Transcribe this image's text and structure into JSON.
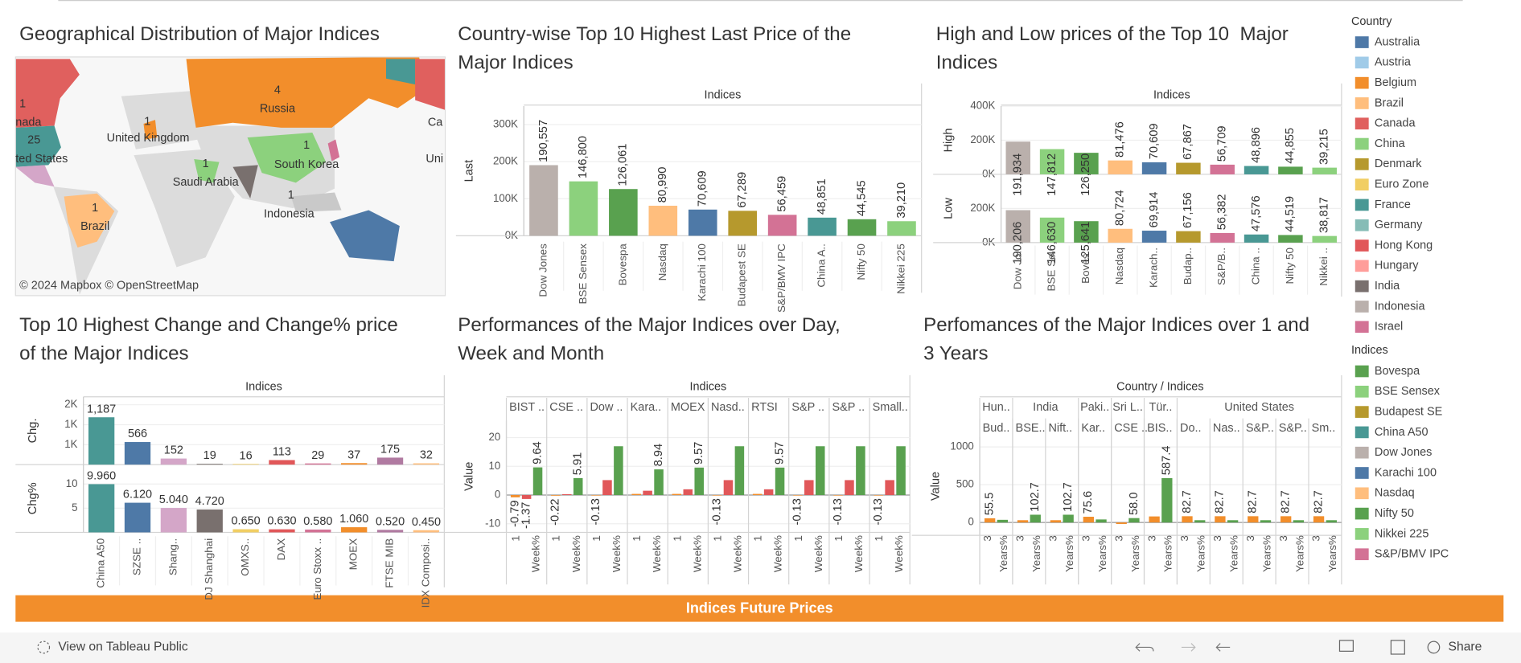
{
  "map": {
    "title": "Geographical Distribution of Major Indices",
    "labels": [
      1,
      "nada",
      25,
      "ted States",
      "United Kingdom",
      1,
      4,
      "Russia",
      1,
      "Saudi Arabia",
      1,
      "South Korea",
      1,
      "Brazil",
      1,
      "Indonesia",
      "Ca",
      "Uni"
    ],
    "attribution": "© 2024 Mapbox  © OpenStreetMap"
  },
  "chart_data": [
    {
      "type": "bar",
      "title": "Country-wise Top 10 Highest Last Price of the Major Indices",
      "header": "Indices",
      "categories": [
        "Dow Jones",
        "BSE Sensex",
        "Bovespa",
        "Nasdaq",
        "Karachi 100",
        "Budapest SE",
        "S&P/BMV IPC",
        "China A..",
        "Nifty 50",
        "Nikkei 225"
      ],
      "colors": [
        "#bab0ac",
        "#8cd17d",
        "#59a14f",
        "#ffbe7d",
        "#4e79a7",
        "#b6992d",
        "#d37295",
        "#499894",
        "#59a14f",
        "#8cd17d"
      ],
      "panels": [
        {
          "y_label": "Last",
          "values": [
            190557,
            146800,
            126061,
            80990,
            70609,
            67289,
            56459,
            48851,
            44545,
            39210
          ],
          "value_labels": [
            "190,557",
            "146,800",
            "126,061",
            "80,990",
            "70,609",
            "67,289",
            "56,459",
            "48,851",
            "44,545",
            "39,210"
          ],
          "ylim": [
            0,
            350000
          ],
          "yticks": [
            {
              "value": 0,
              "label": "0K"
            },
            {
              "value": 100000,
              "label": "100K"
            },
            {
              "value": 200000,
              "label": "200K"
            },
            {
              "value": 300000,
              "label": "300K"
            }
          ]
        }
      ]
    },
    {
      "type": "bar",
      "title": "High and Low prices of the Top 10  Major Indices",
      "header": "Indices",
      "categories": [
        "Dow Jo..",
        "BSE Se..",
        "Boves..",
        "Nasdaq",
        "Karach..",
        "Budap..",
        "S&P/B..",
        "China ..",
        "Nifty 50",
        "Nikkei .."
      ],
      "colors": [
        "#bab0ac",
        "#8cd17d",
        "#59a14f",
        "#ffbe7d",
        "#4e79a7",
        "#b6992d",
        "#d37295",
        "#499894",
        "#59a14f",
        "#8cd17d"
      ],
      "panels": [
        {
          "y_label": "High",
          "values": [
            191934,
            147812,
            126250,
            81476,
            70609,
            67867,
            56709,
            48896,
            44855,
            39215
          ],
          "value_labels": [
            "191,934",
            "147,812",
            "126,250",
            "81,476",
            "70,609",
            "67,867",
            "56,709",
            "48,896",
            "44,855",
            "39,215"
          ],
          "ylim": [
            0,
            400000
          ],
          "yticks": [
            {
              "value": 0,
              "label": "0K"
            },
            {
              "value": 200000,
              "label": "200K"
            },
            {
              "value": 400000,
              "label": "400K"
            }
          ]
        },
        {
          "y_label": "Low",
          "values": [
            190206,
            146630,
            125641,
            80724,
            69914,
            67156,
            56382,
            47576,
            44519,
            38817
          ],
          "value_labels": [
            "190,206",
            "146,630",
            "125,641",
            "80,724",
            "69,914",
            "67,156",
            "56,382",
            "47,576",
            "44,519",
            "38,817"
          ],
          "ylim": [
            0,
            400000
          ],
          "yticks": [
            {
              "value": 0,
              "label": "0K"
            },
            {
              "value": 200000,
              "label": "200K"
            }
          ]
        }
      ]
    },
    {
      "type": "bar",
      "title": "Top 10 Highest Change and Change% price of the Major Indices",
      "header": "Indices",
      "categories": [
        "China A50",
        "SZSE ..",
        "Shang..",
        "DJ Shanghai",
        "OMXS..",
        "DAX",
        "Euro Stoxx ..",
        "MOEX",
        "FTSE MIB",
        "IDX Composi.."
      ],
      "colors": [
        "#499894",
        "#4e79a7",
        "#d4a6c8",
        "#79706e",
        "#f1ce63",
        "#e15759",
        "#d37295",
        "#f28e2b",
        "#b07aa1",
        "#ffbe7d"
      ],
      "panels": [
        {
          "y_label": "Chg.",
          "values": [
            1187,
            566,
            152,
            19,
            16,
            113,
            29,
            37,
            175,
            32
          ],
          "value_labels": [
            "1,187",
            "566",
            "152",
            "19",
            "16",
            "113",
            "29",
            "37",
            "175",
            "32"
          ],
          "ylim": [
            0,
            1700
          ],
          "yticks": [
            {
              "value": 500,
              "label": "1K"
            },
            {
              "value": 1000,
              "label": "1K"
            },
            {
              "value": 1500,
              "label": "2K"
            }
          ]
        },
        {
          "y_label": "Chg%",
          "values": [
            9.96,
            6.12,
            5.04,
            4.72,
            0.65,
            0.63,
            0.58,
            1.06,
            0.52,
            0.45
          ],
          "value_labels": [
            "9.960",
            "6.120",
            "5.040",
            "4.720",
            "0.650",
            "0.630",
            "0.580",
            "1.060",
            "0.520",
            "0.450"
          ],
          "ylim": [
            0,
            14
          ],
          "yticks": [
            5,
            10
          ]
        }
      ]
    },
    {
      "type": "grouped-bar",
      "title": "Performances of the Major Indices over Day, Week and Month",
      "header": "Indices",
      "columns": [
        "BIST ..",
        "CSE ..",
        "Dow ..",
        "Kara..",
        "MOEX",
        "Nasd..",
        "RTSI",
        "S&P ..",
        "S&P ..",
        "Small.."
      ],
      "sub_labels": [
        "1",
        "Week%"
      ],
      "y_label": "Value",
      "ylim": [
        -13,
        26
      ],
      "yticks": [
        -10,
        0,
        10,
        20
      ],
      "series": [
        {
          "color": "#f28e2b",
          "values": [
            -0.79,
            -0.22,
            -0.13,
            0.4,
            0.4,
            -0.13,
            0.4,
            -0.13,
            -0.13,
            -0.13
          ],
          "value_labels": [
            "-0.79",
            "-0.22",
            "-0.13",
            null,
            null,
            "-0.13",
            null,
            "-0.13",
            "-0.13",
            "-0.13"
          ]
        },
        {
          "color": "#e15759",
          "values": [
            -1.37,
            0.3,
            5.2,
            1.5,
            2.0,
            5.2,
            2.0,
            5.2,
            5.2,
            5.2
          ],
          "value_labels": [
            "-1.37",
            null,
            null,
            null,
            null,
            null,
            null,
            null,
            null,
            null
          ]
        },
        {
          "color": "#59a14f",
          "values": [
            9.64,
            5.91,
            17,
            8.94,
            9.57,
            17,
            9.57,
            17,
            17,
            17
          ],
          "value_labels": [
            "9.64",
            "5.91",
            null,
            "8.94",
            "9.57",
            null,
            "9.57",
            null,
            null,
            null
          ]
        }
      ]
    },
    {
      "type": "grouped-bar",
      "title": "Perfomances of the Major Indices over 1 and 3 Years",
      "header": "Country / Indices",
      "groups": [
        "Hun..",
        "India",
        null,
        "Paki..",
        "Sri L..",
        "Tür..",
        "United States",
        null,
        null,
        null,
        null
      ],
      "columns": [
        "Bud..",
        "BSE..",
        "Nift..",
        "Kar..",
        "CSE ..",
        "BIS..",
        "Do..",
        "Nas..",
        "S&P..",
        "S&P..",
        "Sm.."
      ],
      "sub_labels": [
        "3",
        "Years%"
      ],
      "y_label": "Value",
      "ylim": [
        -170,
        1130
      ],
      "yticks": [
        0,
        500,
        1000
      ],
      "series": [
        {
          "color": "#f28e2b",
          "values": [
            55.5,
            30,
            30,
            75.6,
            -20,
            80,
            82.7,
            82.7,
            82.7,
            82.7,
            82.7
          ],
          "value_labels": [
            "55.5",
            null,
            null,
            "75.6",
            null,
            null,
            "82.7",
            "82.7",
            "82.7",
            "82.7",
            "82.7"
          ]
        },
        {
          "color": "#59a14f",
          "values": [
            35,
            102.7,
            102.7,
            40,
            58,
            587.4,
            30,
            30,
            30,
            30,
            30
          ],
          "value_labels": [
            null,
            "102.7",
            "102.7",
            null,
            "58.0",
            "587.4",
            null,
            null,
            null,
            null,
            null
          ]
        }
      ]
    }
  ],
  "legends": [
    {
      "title": "Country",
      "items": [
        {
          "name": "Australia",
          "color": "#4e79a7"
        },
        {
          "name": "Austria",
          "color": "#a0cbe8"
        },
        {
          "name": "Belgium",
          "color": "#f28e2b"
        },
        {
          "name": "Brazil",
          "color": "#ffbe7d"
        },
        {
          "name": "Canada",
          "color": "#e0605e"
        },
        {
          "name": "China",
          "color": "#8cd17d"
        },
        {
          "name": "Denmark",
          "color": "#b6992d"
        },
        {
          "name": "Euro Zone",
          "color": "#f1ce63"
        },
        {
          "name": "France",
          "color": "#499894"
        },
        {
          "name": "Germany",
          "color": "#86bcb6"
        },
        {
          "name": "Hong Kong",
          "color": "#e15759"
        },
        {
          "name": "Hungary",
          "color": "#ff9d9a"
        },
        {
          "name": "India",
          "color": "#79706e"
        },
        {
          "name": "Indonesia",
          "color": "#bab0ac"
        },
        {
          "name": "Israel",
          "color": "#d37295"
        }
      ]
    },
    {
      "title": "Indices",
      "items": [
        {
          "name": "Bovespa",
          "color": "#59a14f"
        },
        {
          "name": "BSE Sensex",
          "color": "#8cd17d"
        },
        {
          "name": "Budapest SE",
          "color": "#b6992d"
        },
        {
          "name": "China A50",
          "color": "#499894"
        },
        {
          "name": "Dow Jones",
          "color": "#bab0ac"
        },
        {
          "name": "Karachi 100",
          "color": "#4e79a7"
        },
        {
          "name": "Nasdaq",
          "color": "#ffbe7d"
        },
        {
          "name": "Nifty 50",
          "color": "#59a14f"
        },
        {
          "name": "Nikkei 225",
          "color": "#8cd17d"
        },
        {
          "name": "S&P/BMV IPC",
          "color": "#d37295"
        }
      ]
    }
  ],
  "banner": "Indices Future Prices",
  "toolbar": {
    "view": "View on Tableau Public",
    "share": "Share"
  }
}
